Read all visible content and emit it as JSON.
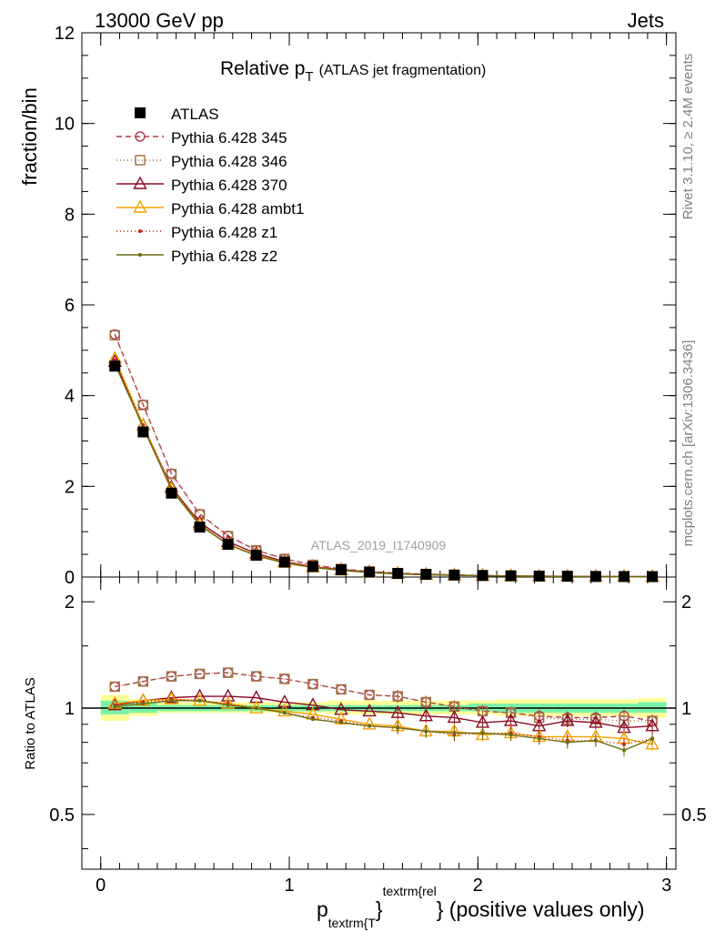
{
  "header": {
    "left": "13000 GeV pp",
    "right": "Jets"
  },
  "side_labels": {
    "rivet": "Rivet 3.1.10, ≥ 2.4M events",
    "mcplots": "mcplots.cern.ch [arXiv:1306.3436]"
  },
  "main": {
    "title_main": "Relative p",
    "title_sub": "T",
    "title_note": "(ATLAS jet fragmentation)",
    "ylabel": "fraction/bin",
    "watermark": "ATLAS_2019_I1740909"
  },
  "ratio": {
    "ylabel": "Ratio to ATLAS"
  },
  "xaxis": {
    "label_p": "p",
    "label_sub": "textrm{T",
    "label_brace": "}",
    "label_sup": "textrm{rel",
    "label_rest": "} (positive values only)"
  },
  "legend": [
    {
      "name": "ATLAS"
    },
    {
      "name": "Pythia 6.428 345"
    },
    {
      "name": "Pythia 6.428 346"
    },
    {
      "name": "Pythia 6.428 370"
    },
    {
      "name": "Pythia 6.428 ambt1"
    },
    {
      "name": "Pythia 6.428 z1"
    },
    {
      "name": "Pythia 6.428 z2"
    }
  ],
  "chart_data": [
    {
      "type": "line",
      "panel": "main",
      "title": "Relative pT (ATLAS jet fragmentation)",
      "xlabel": "p_{textrm{T}}^{textrm{rel}} (positive values only)",
      "ylabel": "fraction/bin",
      "xlim": [
        -0.1,
        3.05
      ],
      "ylim": [
        0,
        12
      ],
      "x_ticks": [
        "0",
        "1",
        "2",
        "3"
      ],
      "y_ticks": [
        "0",
        "2",
        "4",
        "6",
        "8",
        "10",
        "12"
      ],
      "x": [
        0.075,
        0.225,
        0.375,
        0.525,
        0.675,
        0.825,
        0.975,
        1.125,
        1.275,
        1.425,
        1.575,
        1.725,
        1.875,
        2.025,
        2.175,
        2.325,
        2.475,
        2.625,
        2.775,
        2.925
      ],
      "series": [
        {
          "name": "ATLAS",
          "color": "#000000",
          "marker": "square",
          "values": [
            4.65,
            3.2,
            1.85,
            1.1,
            0.72,
            0.48,
            0.33,
            0.23,
            0.16,
            0.11,
            0.08,
            0.06,
            0.045,
            0.035,
            0.027,
            0.021,
            0.017,
            0.013,
            0.011,
            0.009
          ]
        },
        {
          "name": "Pythia 6.428 345",
          "color": "#b03a48",
          "marker": "circle-open",
          "dash": "6,4",
          "values": [
            5.35,
            3.8,
            2.28,
            1.39,
            0.91,
            0.59,
            0.4,
            0.27,
            0.18,
            0.12,
            0.088,
            0.063,
            0.046,
            0.034,
            0.026,
            0.02,
            0.016,
            0.012,
            0.01,
            0.008
          ]
        },
        {
          "name": "Pythia 6.428 346",
          "color": "#a07040",
          "marker": "square-open",
          "dash": "1,3",
          "values": [
            5.33,
            3.79,
            2.27,
            1.38,
            0.9,
            0.59,
            0.4,
            0.27,
            0.18,
            0.12,
            0.087,
            0.063,
            0.046,
            0.034,
            0.026,
            0.02,
            0.016,
            0.012,
            0.01,
            0.008
          ]
        },
        {
          "name": "Pythia 6.428 370",
          "color": "#8b0a24",
          "marker": "triangle-open",
          "values": [
            4.75,
            3.35,
            1.98,
            1.2,
            0.78,
            0.52,
            0.34,
            0.23,
            0.16,
            0.11,
            0.077,
            0.056,
            0.042,
            0.032,
            0.024,
            0.019,
            0.016,
            0.012,
            0.01,
            0.008
          ]
        },
        {
          "name": "Pythia 6.428 ambt1",
          "color": "#f5a000",
          "marker": "triangle-open",
          "values": [
            4.82,
            3.35,
            1.95,
            1.16,
            0.72,
            0.48,
            0.32,
            0.22,
            0.15,
            0.1,
            0.07,
            0.052,
            0.038,
            0.029,
            0.022,
            0.017,
            0.014,
            0.011,
            0.009,
            0.007
          ]
        },
        {
          "name": "Pythia 6.428 z1",
          "color": "#cc1f10",
          "marker": "dot",
          "dash": "1,3",
          "values": [
            4.78,
            3.35,
            1.95,
            1.15,
            0.72,
            0.47,
            0.31,
            0.21,
            0.15,
            0.1,
            0.07,
            0.051,
            0.038,
            0.029,
            0.022,
            0.017,
            0.013,
            0.011,
            0.009,
            0.007
          ]
        },
        {
          "name": "Pythia 6.428 z2",
          "color": "#6b6b12",
          "marker": "dot",
          "values": [
            4.7,
            3.3,
            1.93,
            1.14,
            0.72,
            0.47,
            0.31,
            0.21,
            0.15,
            0.1,
            0.07,
            0.051,
            0.038,
            0.029,
            0.022,
            0.017,
            0.013,
            0.011,
            0.009,
            0.007
          ]
        }
      ]
    },
    {
      "type": "line",
      "panel": "ratio",
      "ylabel": "Ratio to ATLAS",
      "xlim": [
        -0.1,
        3.05
      ],
      "ylim": [
        0.35,
        2.35
      ],
      "y_scale": "log",
      "x_ticks": [
        "0",
        "1",
        "2",
        "3"
      ],
      "y_ticks": [
        "0.5",
        "1",
        "2"
      ],
      "x": [
        0.075,
        0.225,
        0.375,
        0.525,
        0.675,
        0.825,
        0.975,
        1.125,
        1.275,
        1.425,
        1.575,
        1.725,
        1.875,
        2.025,
        2.175,
        2.325,
        2.475,
        2.625,
        2.775,
        2.925
      ],
      "bands": [
        {
          "edges": [
            0.0,
            0.15,
            0.3,
            0.45,
            0.6,
            0.75,
            0.9,
            1.05,
            1.2,
            1.35,
            1.5,
            1.65,
            1.8,
            1.95,
            2.1,
            2.25,
            2.4,
            2.55,
            2.7,
            2.85,
            3.0
          ],
          "yellow_lo": [
            0.92,
            0.95,
            0.97,
            0.97,
            0.97,
            0.97,
            0.97,
            0.97,
            0.96,
            0.96,
            0.96,
            0.96,
            0.96,
            0.96,
            0.95,
            0.95,
            0.95,
            0.95,
            0.95,
            0.94
          ],
          "yellow_hi": [
            1.09,
            1.06,
            1.04,
            1.04,
            1.04,
            1.04,
            1.04,
            1.04,
            1.05,
            1.05,
            1.05,
            1.05,
            1.05,
            1.05,
            1.06,
            1.06,
            1.06,
            1.06,
            1.06,
            1.07
          ],
          "green_lo": [
            0.96,
            0.97,
            0.98,
            0.98,
            0.98,
            0.98,
            0.98,
            0.98,
            0.98,
            0.98,
            0.98,
            0.98,
            0.98,
            0.98,
            0.97,
            0.97,
            0.97,
            0.97,
            0.97,
            0.97
          ],
          "green_hi": [
            1.05,
            1.04,
            1.02,
            1.02,
            1.02,
            1.02,
            1.02,
            1.02,
            1.02,
            1.02,
            1.02,
            1.02,
            1.02,
            1.03,
            1.03,
            1.03,
            1.03,
            1.03,
            1.03,
            1.04
          ]
        }
      ],
      "series": [
        {
          "name": "Pythia 6.428 345",
          "values": [
            1.15,
            1.19,
            1.23,
            1.25,
            1.26,
            1.23,
            1.21,
            1.17,
            1.13,
            1.09,
            1.08,
            1.04,
            1.01,
            0.98,
            0.97,
            0.95,
            0.94,
            0.94,
            0.95,
            0.92
          ]
        },
        {
          "name": "Pythia 6.428 346",
          "values": [
            1.15,
            1.19,
            1.23,
            1.25,
            1.26,
            1.23,
            1.21,
            1.17,
            1.13,
            1.09,
            1.08,
            1.04,
            1.01,
            0.98,
            0.97,
            0.94,
            0.93,
            0.93,
            0.92,
            0.92
          ]
        },
        {
          "name": "Pythia 6.428 370",
          "values": [
            1.02,
            1.05,
            1.07,
            1.08,
            1.08,
            1.07,
            1.04,
            1.02,
            0.99,
            0.98,
            0.97,
            0.95,
            0.94,
            0.91,
            0.92,
            0.89,
            0.92,
            0.91,
            0.88,
            0.89
          ]
        },
        {
          "name": "Pythia 6.428 ambt1",
          "values": [
            1.03,
            1.05,
            1.06,
            1.05,
            1.03,
            1.0,
            0.98,
            0.96,
            0.93,
            0.9,
            0.89,
            0.86,
            0.86,
            0.84,
            0.85,
            0.83,
            0.83,
            0.83,
            0.82,
            0.79
          ]
        },
        {
          "name": "Pythia 6.428 z1",
          "values": [
            1.02,
            1.04,
            1.06,
            1.05,
            1.03,
            1.0,
            0.97,
            0.94,
            0.92,
            0.89,
            0.88,
            0.86,
            0.84,
            0.85,
            0.85,
            0.83,
            0.81,
            0.81,
            0.79,
            0.82
          ]
        },
        {
          "name": "Pythia 6.428 z2",
          "values": [
            1.01,
            1.03,
            1.05,
            1.05,
            1.02,
            1.0,
            0.97,
            0.93,
            0.91,
            0.89,
            0.88,
            0.86,
            0.85,
            0.85,
            0.84,
            0.82,
            0.8,
            0.81,
            0.76,
            0.82
          ]
        }
      ]
    }
  ]
}
